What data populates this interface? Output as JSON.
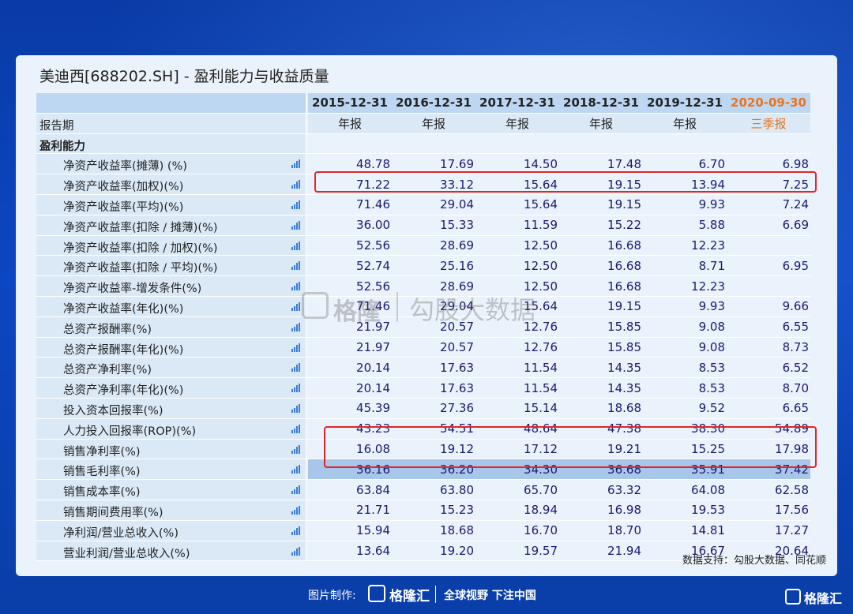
{
  "title": "美迪西[688202.SH] - 盈利能力与收益质量",
  "header": {
    "dates": [
      "2015-12-31",
      "2016-12-31",
      "2017-12-31",
      "2018-12-31",
      "2019-12-31",
      "2020-09-30"
    ],
    "period_label": "报告期",
    "periods": [
      "年报",
      "年报",
      "年报",
      "年报",
      "年报",
      "三季报"
    ],
    "section_label": "盈利能力"
  },
  "rows": [
    {
      "label": "净资产收益率(摊薄) (%)",
      "values": [
        "48.78",
        "17.69",
        "14.50",
        "17.48",
        "6.70",
        "6.98"
      ]
    },
    {
      "label": "净资产收益率(加权)(%)",
      "values": [
        "71.22",
        "33.12",
        "15.64",
        "19.15",
        "13.94",
        "7.25"
      ]
    },
    {
      "label": "净资产收益率(平均)(%)",
      "values": [
        "71.46",
        "29.04",
        "15.64",
        "19.15",
        "9.93",
        "7.24"
      ]
    },
    {
      "label": "净资产收益率(扣除 / 摊薄)(%)",
      "values": [
        "36.00",
        "15.33",
        "11.59",
        "15.22",
        "5.88",
        "6.69"
      ]
    },
    {
      "label": "净资产收益率(扣除 / 加权)(%)",
      "values": [
        "52.56",
        "28.69",
        "12.50",
        "16.68",
        "12.23",
        ""
      ]
    },
    {
      "label": "净资产收益率(扣除 / 平均)(%)",
      "values": [
        "52.74",
        "25.16",
        "12.50",
        "16.68",
        "8.71",
        "6.95"
      ]
    },
    {
      "label": "净资产收益率-增发条件(%)",
      "values": [
        "52.56",
        "28.69",
        "12.50",
        "16.68",
        "12.23",
        ""
      ]
    },
    {
      "label": "净资产收益率(年化)(%)",
      "values": [
        "71.46",
        "29.04",
        "15.64",
        "19.15",
        "9.93",
        "9.66"
      ]
    },
    {
      "label": "总资产报酬率(%)",
      "values": [
        "21.97",
        "20.57",
        "12.76",
        "15.85",
        "9.08",
        "6.55"
      ]
    },
    {
      "label": "总资产报酬率(年化)(%)",
      "values": [
        "21.97",
        "20.57",
        "12.76",
        "15.85",
        "9.08",
        "8.73"
      ]
    },
    {
      "label": "总资产净利率(%)",
      "values": [
        "20.14",
        "17.63",
        "11.54",
        "14.35",
        "8.53",
        "6.52"
      ]
    },
    {
      "label": "总资产净利率(年化)(%)",
      "values": [
        "20.14",
        "17.63",
        "11.54",
        "14.35",
        "8.53",
        "8.70"
      ]
    },
    {
      "label": "投入资本回报率(%)",
      "values": [
        "45.39",
        "27.36",
        "15.14",
        "18.68",
        "9.52",
        "6.65"
      ]
    },
    {
      "label": "人力投入回报率(ROP)(%)",
      "values": [
        "43.23",
        "54.51",
        "48.64",
        "47.38",
        "38.30",
        "54.89"
      ]
    },
    {
      "label": "销售净利率(%)",
      "values": [
        "16.08",
        "19.12",
        "17.12",
        "19.21",
        "15.25",
        "17.98"
      ]
    },
    {
      "label": "销售毛利率(%)",
      "values": [
        "36.16",
        "36.20",
        "34.30",
        "36.68",
        "35.91",
        "37.42"
      ]
    },
    {
      "label": "销售成本率(%)",
      "values": [
        "63.84",
        "63.80",
        "65.70",
        "63.32",
        "64.08",
        "62.58"
      ]
    },
    {
      "label": "销售期间费用率(%)",
      "values": [
        "21.71",
        "15.23",
        "18.94",
        "16.98",
        "19.53",
        "17.56"
      ]
    },
    {
      "label": "净利润/营业总收入(%)",
      "values": [
        "15.94",
        "18.68",
        "16.70",
        "18.70",
        "14.81",
        "17.27"
      ]
    },
    {
      "label": "营业利润/营业总收入(%)",
      "values": [
        "13.64",
        "19.20",
        "19.57",
        "21.94",
        "16.67",
        "20.64"
      ]
    }
  ],
  "watermark": {
    "brand": "格隆",
    "text": "勾股大数据"
  },
  "source": "数据支持：勾股大数据、同花顺",
  "footer": {
    "made_by": "图片制作:",
    "brand": "格隆汇",
    "slogan": "全球视野 下注中国"
  },
  "corner_brand": "格隆汇",
  "colors": {
    "highlight_period": "#e8741e",
    "redbox": "#e0252b",
    "value_text": "#1a1a6e"
  }
}
